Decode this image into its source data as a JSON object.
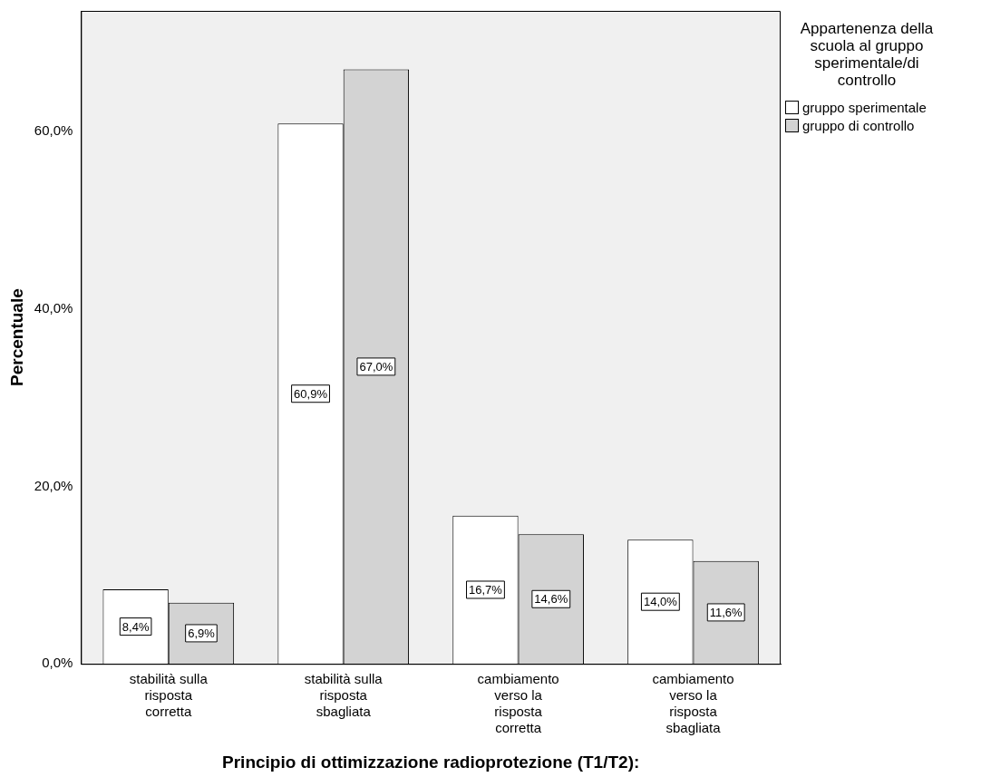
{
  "chart_data": {
    "type": "bar",
    "xlabel": "Principio di ottimizzazione radioprotezione (T1/T2):",
    "ylabel": "Percentuale",
    "legend_title": "Appartenenza della scuola al gruppo sperimentale/di controllo",
    "legend": "top right",
    "categories": [
      "stabilità sulla risposta corretta",
      "stabilità sulla risposta sbagliata",
      "cambiamento verso la risposta corretta",
      "cambiamento verso la risposta sbagliata"
    ],
    "series": [
      {
        "name": "gruppo sperimentale",
        "color": "#ffffff",
        "values": [
          8.4,
          60.9,
          16.7,
          14.0
        ],
        "value_labels": [
          "8,4%",
          "60,9%",
          "16,7%",
          "14,0%"
        ]
      },
      {
        "name": "gruppo di controllo",
        "color": "#d3d3d3",
        "values": [
          6.9,
          67.0,
          14.6,
          11.6
        ],
        "value_labels": [
          "6,9%",
          "67,0%",
          "14,6%",
          "11,6%"
        ]
      }
    ],
    "ylim": [
      0,
      73.6
    ],
    "yticks": [
      {
        "value": 0,
        "label": "0,0%"
      },
      {
        "value": 20,
        "label": "20,0%"
      },
      {
        "value": 40,
        "label": "40,0%"
      },
      {
        "value": 60,
        "label": "60,0%"
      }
    ]
  }
}
